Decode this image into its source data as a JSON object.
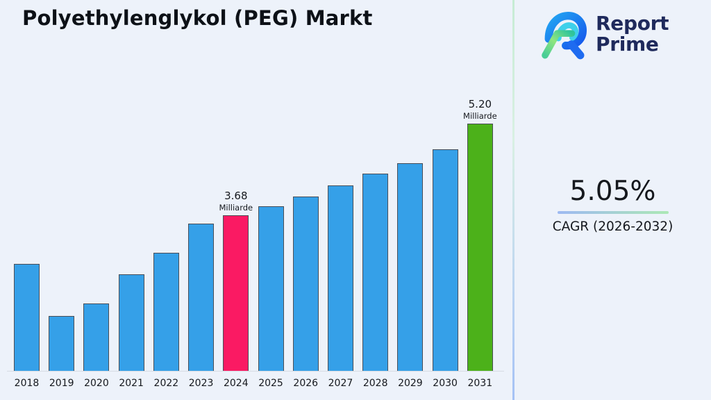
{
  "page": {
    "title": "Polyethylenglykol (PEG) Markt",
    "background_color": "#EDF2FA"
  },
  "brand": {
    "name_top": "Report",
    "name_bottom": "Prime",
    "text_color": "#1F2A5C",
    "logo_colors": {
      "outer_blue_start": "#23A6F2",
      "outer_blue_end": "#1557EC",
      "inner_cyan": "#3ED0EA",
      "green_start": "#49CD96",
      "green_mid": "#8FE67F",
      "green_end": "#2FC49B",
      "leg_blue": "#1E6BF0"
    }
  },
  "cagr": {
    "value": "5.05%",
    "label": "CAGR (2026-2032)",
    "underline_gradient": [
      "#9DB9F2",
      "#ACE8B5"
    ]
  },
  "divider": {
    "gradient": [
      "#C6ECD4",
      "#D9F0E3",
      "#BBD3F2",
      "#A5C2F5"
    ]
  },
  "chart_data": {
    "type": "bar",
    "title": "Polyethylenglykol (PEG) Markt",
    "unit": "Milliarde",
    "categories": [
      "2018",
      "2019",
      "2020",
      "2021",
      "2022",
      "2023",
      "2024",
      "2025",
      "2026",
      "2027",
      "2028",
      "2029",
      "2030",
      "2031"
    ],
    "values": [
      2.87,
      2.01,
      2.22,
      2.7,
      3.05,
      3.54,
      3.68,
      3.83,
      3.99,
      4.17,
      4.37,
      4.54,
      4.77,
      5.2
    ],
    "value_labels": [
      {
        "category": "2024",
        "value_text": "3.68",
        "unit_text": "Milliarde"
      },
      {
        "category": "2031",
        "value_text": "5.20",
        "unit_text": "Milliarde"
      }
    ],
    "bar_color_default": "#35A0E8",
    "bar_color_overrides": {
      "2024": "#FA1A63",
      "2031": "#4CB11A"
    },
    "bar_edge_color": "#4A4E57",
    "ylim": [
      1.1,
      5.85
    ],
    "xlabel": "",
    "ylabel": "",
    "grid": false,
    "legend": false
  }
}
